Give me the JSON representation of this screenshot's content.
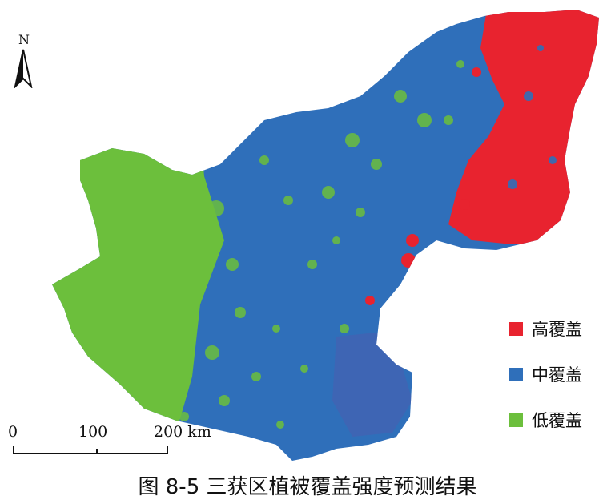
{
  "north_arrow": {
    "letter": "N"
  },
  "legend": {
    "items": [
      {
        "label": "高覆盖",
        "color": "#e8232f"
      },
      {
        "label": "中覆盖",
        "color": "#2f6fba"
      },
      {
        "label": "低覆盖",
        "color": "#6cbf3c"
      }
    ]
  },
  "scale_bar": {
    "ticks": [
      "0",
      "100",
      "200 km"
    ]
  },
  "caption": "图 8-5 三获区植被覆盖强度预测结果"
}
